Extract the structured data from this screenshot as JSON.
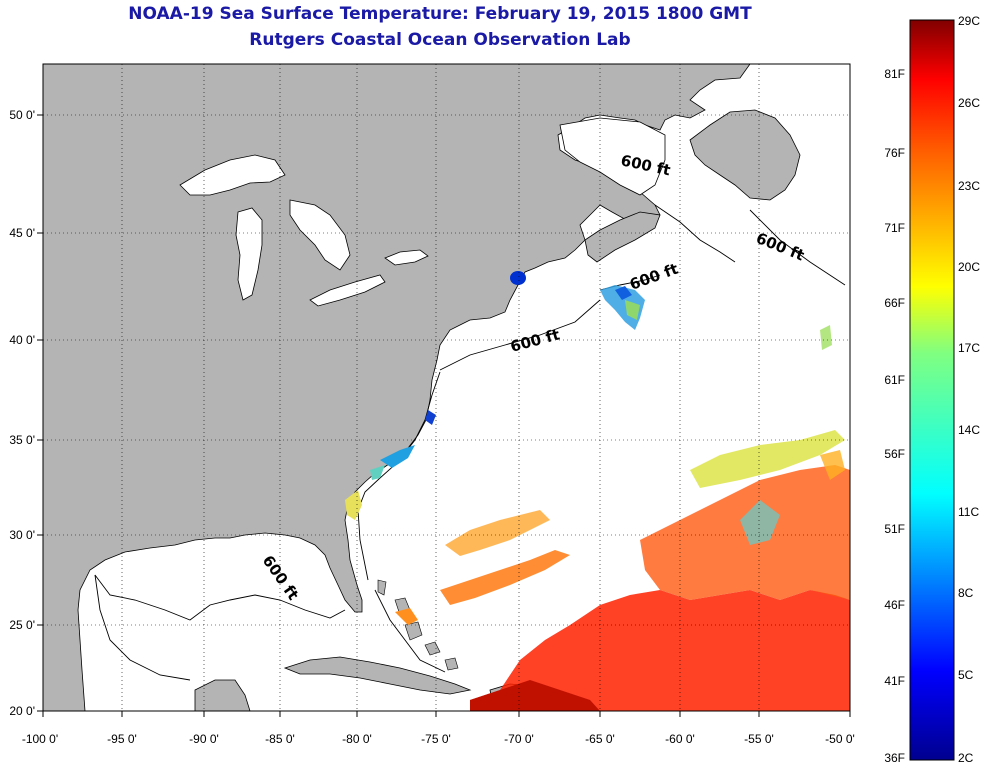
{
  "title": {
    "line1": "NOAA-19 Sea Surface Temperature:  February 19, 2015 1800 GMT",
    "line2": "Rutgers Coastal Ocean Observation Lab"
  },
  "map": {
    "lon_range": [
      -100,
      -50
    ],
    "lat_range": [
      20,
      52
    ],
    "lon_ticks": [
      "-100 0'",
      "-95 0'",
      "-90 0'",
      "-85 0'",
      "-80 0'",
      "-75 0'",
      "-70 0'",
      "-65 0'",
      "-60 0'",
      "-55 0'",
      "-50 0'"
    ],
    "lat_ticks": [
      "50 0'",
      "45 0'",
      "40 0'",
      "35 0'",
      "30 0'",
      "25 0'",
      "20 0'"
    ],
    "contour_labels": [
      "600 ft",
      "600 ft",
      "600 ft",
      "600 ft",
      "600 ft"
    ],
    "land_color": "#b4b4b4",
    "ocean_color": "#ffffff"
  },
  "colorbar": {
    "fahrenheit_labels": [
      "81F",
      "76F",
      "71F",
      "66F",
      "61F",
      "56F",
      "51F",
      "46F",
      "41F",
      "36F"
    ],
    "celsius_labels": [
      "29C",
      "26C",
      "23C",
      "20C",
      "17C",
      "14C",
      "11C",
      "8C",
      "5C",
      "2C"
    ],
    "colors": [
      "#800000",
      "#ff0000",
      "#ff8000",
      "#ffff00",
      "#80ff80",
      "#00ffff",
      "#0080ff",
      "#0000ff",
      "#000080"
    ]
  }
}
